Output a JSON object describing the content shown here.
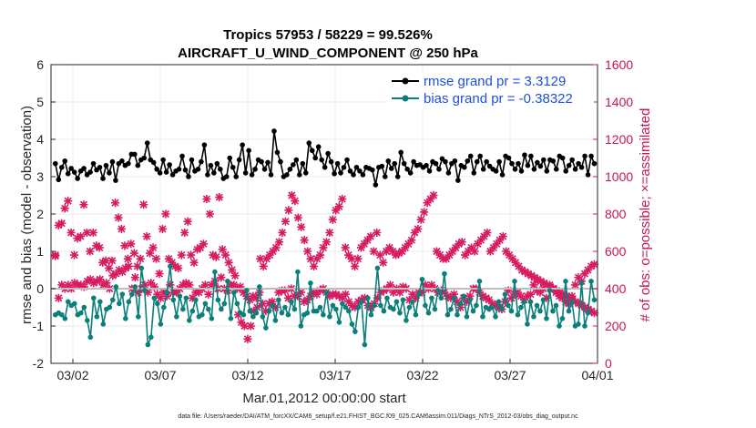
{
  "chart_data": {
    "type": "line",
    "title": [
      "Tropics 57953 / 58229 = 99.526%",
      "AIRCRAFT_U_WIND_COMPONENT @ 250 hPa"
    ],
    "xlabel": "Mar.01,2012 00:00:00 start",
    "ylabel": "rmse and bias (model - observation)",
    "y2label": "# of obs: o=possible; ×=assimilated",
    "footer": "data file: /Users/raeder/DAI/ATM_forcXX/CAM6_setup/f.e21.FHIST_BGC.f09_025.CAM6assim.011/Diags_NTrS_2012-03/obs_diag_output.nc",
    "xlim": [
      0,
      31.25
    ],
    "ylim": [
      -2,
      6
    ],
    "y2lim": [
      0,
      1600
    ],
    "xticks": [
      1.25,
      6.25,
      11.25,
      16.25,
      21.25,
      26.25,
      31.25
    ],
    "xtick_labels": [
      "03/02",
      "03/07",
      "03/12",
      "03/17",
      "03/22",
      "03/27",
      "04/01"
    ],
    "yticks": [
      "-2",
      "-1",
      "0",
      "1",
      "2",
      "3",
      "4",
      "5",
      "6"
    ],
    "y2ticks": [
      "0",
      "200",
      "400",
      "600",
      "800",
      "1000",
      "1200",
      "1400",
      "1600"
    ],
    "legend": {
      "placement": "top-right",
      "entries": [
        "rmse grand pr = 3.3129",
        "bias grand pr = -0.38322"
      ]
    },
    "colors": {
      "rmse": "#000000",
      "bias": "#0b7f7a",
      "obs": "#d81b60",
      "zero_line": "#bdbdbd",
      "grid": "#ebebeb"
    },
    "series": [
      {
        "name": "rmse",
        "axis": "left",
        "values": [
          3.35,
          2.92,
          3.25,
          3.42,
          3.08,
          3.22,
          3.12,
          2.95,
          3.15,
          3.22,
          3.05,
          3.12,
          3.35,
          3.18,
          3.25,
          2.95,
          3.3,
          3.1,
          3.4,
          2.9,
          3.35,
          3.42,
          3.3,
          3.35,
          3.6,
          3.6,
          3.3,
          3.45,
          3.5,
          3.9,
          3.45,
          3.38,
          3.2,
          3.1,
          3.45,
          3.12,
          3.32,
          3.05,
          3.15,
          3.2,
          3.55,
          3.18,
          3.0,
          3.45,
          3.15,
          3.2,
          3.4,
          3.85,
          3.05,
          3.3,
          3.1,
          3.35,
          3.2,
          2.95,
          3.0,
          3.5,
          3.25,
          3.0,
          3.45,
          3.85,
          3.1,
          3.7,
          3.05,
          3.2,
          3.45,
          3.4,
          3.2,
          3.38,
          3.05,
          4.22,
          3.65,
          3.4,
          3.0,
          3.05,
          3.2,
          3.32,
          3.45,
          3.05,
          3.35,
          3.1,
          3.9,
          3.7,
          3.5,
          3.8,
          3.45,
          3.25,
          3.62,
          3.4,
          3.08,
          3.35,
          3.1,
          3.25,
          3.45,
          3.15,
          3.05,
          3.25,
          3.15,
          3.05,
          3.25,
          3.22,
          3.18,
          2.78,
          3.25,
          3.28,
          3.0,
          3.42,
          3.22,
          3.35,
          3.0,
          3.65,
          3.35,
          3.2,
          3.1,
          3.4,
          3.3,
          3.32,
          3.25,
          3.3,
          3.15,
          3.4,
          3.35,
          3.2,
          3.48,
          3.4,
          3.1,
          3.35,
          3.42,
          2.9,
          3.3,
          3.25,
          3.42,
          3.55,
          3.1,
          3.4,
          3.55,
          3.2,
          3.4,
          3.28,
          3.2,
          3.15,
          3.4,
          3.05,
          3.55,
          3.5,
          3.35,
          3.2,
          3.35,
          3.15,
          3.58,
          3.3,
          3.55,
          3.2,
          3.38,
          3.28,
          3.45,
          3.15,
          3.45,
          3.42,
          3.2,
          3.55,
          3.5,
          3.15,
          3.3,
          3.45,
          3.2,
          3.35,
          3.25,
          3.55,
          3.05,
          3.55,
          3.35
        ]
      },
      {
        "name": "bias",
        "axis": "left",
        "values": [
          -0.7,
          -0.65,
          -0.7,
          -0.8,
          -0.35,
          -0.45,
          -0.4,
          -0.7,
          -0.65,
          -0.5,
          -0.85,
          -1.3,
          -0.25,
          -0.75,
          -0.35,
          -0.95,
          -0.55,
          -0.5,
          -0.3,
          0.05,
          -0.4,
          -0.15,
          -0.8,
          -0.35,
          -0.15,
          0.05,
          -0.75,
          0.55,
          -0.05,
          -1.5,
          -1.3,
          -0.25,
          -0.4,
          -0.95,
          -0.5,
          -0.1,
          0.6,
          -0.3,
          -0.75,
          -0.2,
          -0.55,
          -0.25,
          -0.85,
          -0.6,
          -0.3,
          -0.75,
          -0.7,
          -0.4,
          -0.55,
          -0.8,
          0.45,
          -0.3,
          -0.55,
          -0.4,
          0.2,
          -0.8,
          -0.1,
          -0.4,
          -0.65,
          -0.7,
          -0.05,
          -0.6,
          -0.75,
          -0.65,
          0.05,
          -0.75,
          -1.05,
          -0.6,
          -0.45,
          -0.85,
          -0.3,
          -0.65,
          -0.5,
          -0.7,
          -0.35,
          -0.55,
          0.45,
          -1.0,
          -0.7,
          -0.65,
          0.15,
          -0.6,
          -0.6,
          -0.5,
          -0.7,
          -0.1,
          -0.75,
          -0.45,
          -0.55,
          -0.9,
          -0.4,
          -0.5,
          -0.6,
          -0.95,
          -1.15,
          -0.5,
          -0.35,
          -1.5,
          -0.25,
          -0.7,
          -0.45,
          0.55,
          -0.45,
          -0.6,
          -0.25,
          -0.5,
          -0.55,
          -0.35,
          -0.65,
          -0.3,
          -0.85,
          -0.5,
          -0.35,
          -0.7,
          -0.15,
          0.25,
          -0.45,
          -0.65,
          -0.25,
          -0.55,
          -0.05,
          -0.25,
          0.4,
          -0.7,
          -0.55,
          -0.25,
          -0.7,
          -0.4,
          -0.2,
          -0.75,
          -0.3,
          -0.6,
          -0.45,
          0.2,
          -0.75,
          -0.5,
          -0.55,
          -0.5,
          -0.75,
          -0.35,
          -0.55,
          -0.15,
          -0.45,
          -0.6,
          0.2,
          -0.7,
          -0.5,
          -0.35,
          -0.95,
          -0.35,
          -0.75,
          -0.45,
          -0.6,
          -0.3,
          -0.8,
          -0.05,
          -0.6,
          -0.45,
          -1.0,
          -0.8,
          0.2,
          -0.6,
          -0.35,
          -1.0,
          -0.95,
          0.15,
          -1.0,
          -0.65,
          0.2,
          -0.3
        ]
      },
      {
        "name": "obs possible",
        "axis": "right",
        "values": [
          580,
          350,
          420,
          400,
          420,
          400,
          430,
          420,
          420,
          410,
          440,
          450,
          430,
          440,
          450,
          420,
          430,
          400,
          470,
          480,
          500,
          490,
          510,
          520,
          400,
          460,
          380,
          400,
          420,
          380,
          430,
          410,
          370,
          350,
          380,
          360,
          420,
          380,
          380,
          400,
          420,
          430,
          420,
          350,
          380,
          380,
          400,
          420,
          370,
          420,
          440,
          400,
          460,
          400,
          390,
          420,
          420,
          400,
          410,
          380,
          360,
          340,
          360,
          350,
          380,
          320,
          280,
          320,
          330,
          300,
          380,
          390,
          390,
          350,
          400,
          360,
          360,
          380,
          330,
          340,
          360,
          380,
          370,
          390,
          400,
          380,
          360,
          370,
          370,
          360,
          350,
          370,
          330,
          310,
          300,
          330,
          340,
          350,
          310,
          300,
          320,
          350,
          380,
          390,
          400,
          420,
          380,
          400,
          380,
          410,
          400,
          340,
          370,
          350,
          380,
          380,
          420,
          400,
          420,
          400,
          380,
          390,
          380,
          360,
          350,
          370,
          330,
          300,
          350,
          330,
          360,
          400,
          400,
          380,
          360,
          350,
          340,
          320,
          310,
          300,
          290,
          330,
          390,
          350,
          370,
          380,
          360,
          340,
          360,
          370,
          420,
          390,
          380,
          400,
          350,
          420,
          400,
          380,
          360,
          350,
          330,
          320,
          360,
          420,
          460,
          440,
          480,
          500,
          520,
          530
        ]
      },
      {
        "name": "obs assimilated",
        "axis": "right",
        "values": [
          575,
          740,
          750,
          830,
          870,
          700,
          580,
          670,
          680,
          850,
          700,
          600,
          700,
          630,
          620,
          540,
          550,
          510,
          550,
          860,
          780,
          720,
          630,
          560,
          640,
          590,
          520,
          560,
          850,
          680,
          590,
          620,
          560,
          480,
          720,
          800,
          560,
          540,
          520,
          510,
          580,
          700,
          760,
          580,
          540,
          610,
          620,
          640,
          880,
          800,
          580,
          570,
          890,
          610,
          580,
          540,
          500,
          470,
          260,
          220,
          200,
          130,
          200,
          280,
          300,
          560,
          520,
          560,
          580,
          600,
          620,
          650,
          700,
          760,
          820,
          900,
          870,
          780,
          730,
          660,
          600,
          560,
          520,
          560,
          580,
          620,
          650,
          700,
          770,
          820,
          840,
          880,
          620,
          580,
          560,
          520,
          560,
          620,
          640,
          660,
          680,
          600,
          700,
          580,
          540,
          600,
          620,
          600,
          580,
          590,
          600,
          620,
          640,
          660,
          700,
          720,
          770,
          810,
          860,
          880,
          900,
          600,
          580,
          560,
          560,
          580,
          600,
          620,
          640,
          650,
          580,
          600,
          620,
          600,
          640,
          660,
          680,
          700,
          600,
          620,
          640,
          660,
          680,
          600,
          580,
          560,
          540,
          520,
          500,
          490,
          480,
          470,
          460,
          450,
          440,
          430,
          420,
          410,
          400,
          390,
          380,
          370,
          360,
          350,
          340,
          330,
          320,
          310,
          300,
          290,
          280,
          270
        ]
      }
    ]
  }
}
